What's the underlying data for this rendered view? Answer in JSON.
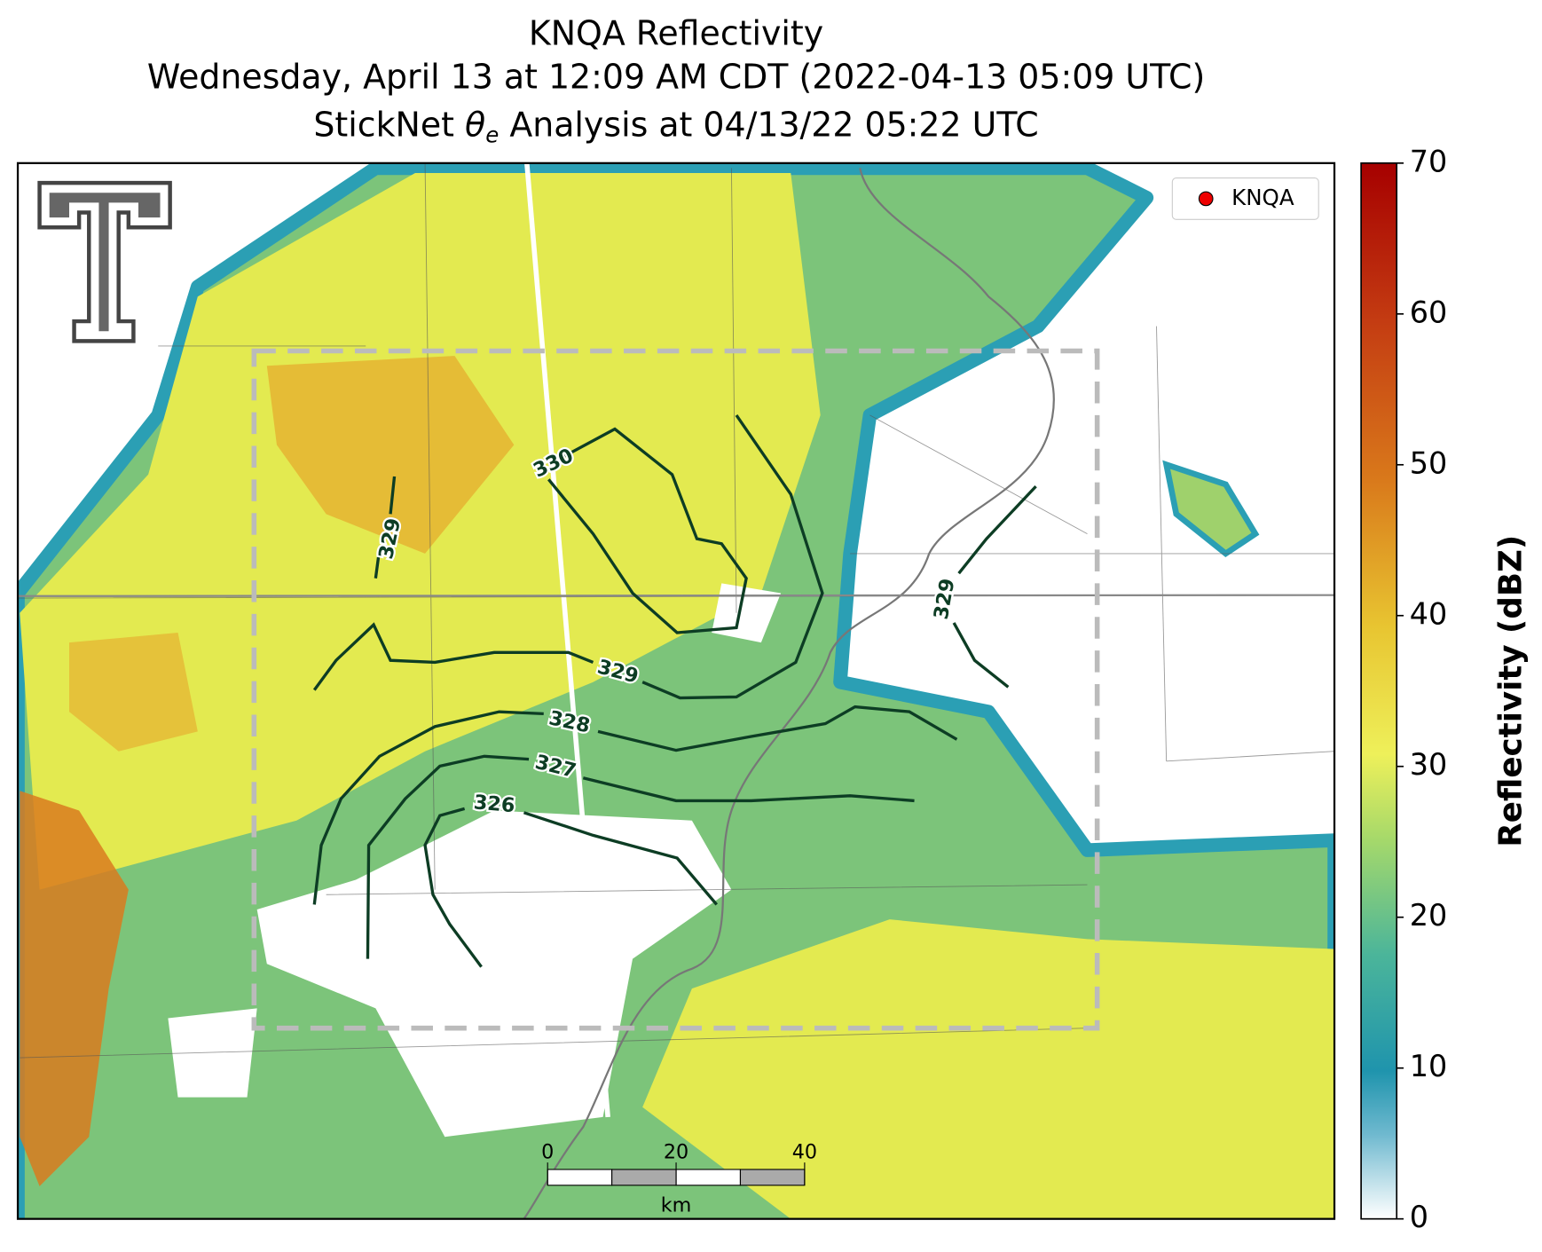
{
  "chart_data": {
    "type": "radar-map",
    "title_lines": [
      "KNQA Reflectivity",
      "Wednesday, April 13 at 12:09 AM CDT (2022-04-13 05:09 UTC)"
    ],
    "analysis_title": {
      "prefix": "StickNet ",
      "symbol": "θ",
      "subscript": "e",
      "suffix": " Analysis at 04/13/22 05:22 UTC"
    },
    "legend": [
      "KNQA"
    ],
    "contours": [
      330,
      329,
      329,
      329,
      328,
      327,
      326
    ],
    "colorbar": {
      "label": "Reflectivity (dBZ)",
      "ylim": [
        0,
        70
      ],
      "yticks": [
        0,
        10,
        20,
        30,
        40,
        50,
        60,
        70
      ]
    },
    "scale_bar": {
      "xlim": [
        0,
        40
      ],
      "xticks": [
        0,
        20,
        40
      ],
      "unit": "km"
    }
  }
}
